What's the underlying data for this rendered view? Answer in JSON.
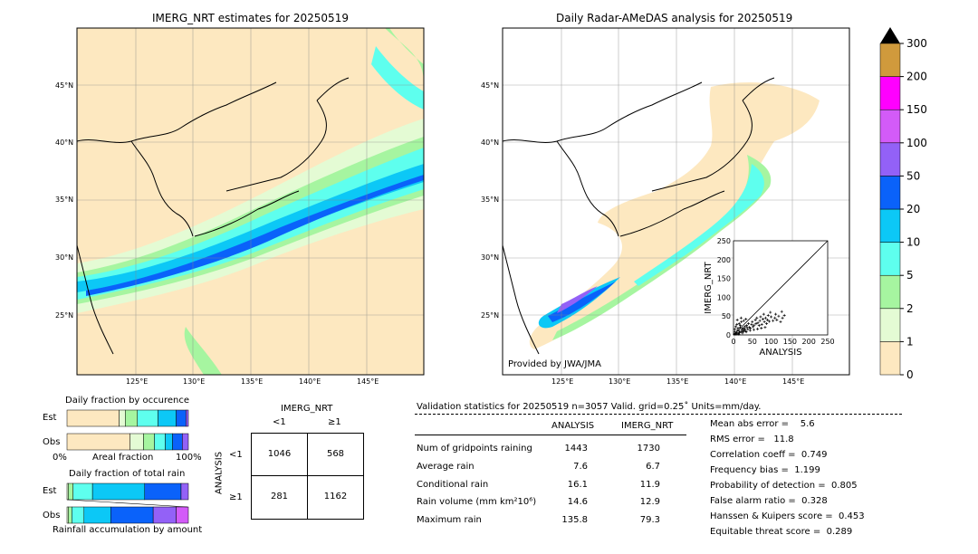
{
  "map_left": {
    "title": "IMERG_NRT estimates for 20250519",
    "lat_ticks": [
      "45°N",
      "40°N",
      "35°N",
      "30°N",
      "25°N"
    ],
    "lon_ticks": [
      "125°E",
      "130°E",
      "135°E",
      "140°E",
      "145°E"
    ]
  },
  "map_right": {
    "title": "Daily Radar-AMeDAS analysis for 20250519",
    "lat_ticks": [
      "45°N",
      "40°N",
      "35°N",
      "30°N",
      "25°N"
    ],
    "lon_ticks": [
      "125°E",
      "130°E",
      "135°E",
      "140°E",
      "145°E"
    ],
    "credit": "Provided by JWA/JMA"
  },
  "colorbar": {
    "levels": [
      "0",
      "1",
      "2",
      "5",
      "10",
      "20",
      "50",
      "100",
      "150",
      "200",
      "300"
    ],
    "colors": [
      "#fde8c0",
      "#e4fbd4",
      "#a6f5a0",
      "#5effee",
      "#0cc8f6",
      "#0a62fa",
      "#9361f7",
      "#d35bf8",
      "#ff00ff",
      "#d09a3c",
      "#000000"
    ]
  },
  "occurrence": {
    "title": "Daily fraction by occurence",
    "row_labels": [
      "Est",
      "Obs"
    ],
    "xlabel_left": "0%",
    "xlabel_center": "Areal fraction",
    "xlabel_right": "100%"
  },
  "total_rain": {
    "title": "Daily fraction of total rain",
    "row_labels": [
      "Est",
      "Obs"
    ],
    "xlabel": "Rainfall accumulation by amount"
  },
  "contingency": {
    "col_header": "IMERG_NRT",
    "col_labels": [
      "<1",
      "≥1"
    ],
    "row_header": "ANALYSIS",
    "row_labels": [
      "<1",
      "≥1"
    ],
    "cells": [
      [
        "1046",
        "568"
      ],
      [
        "281",
        "1162"
      ]
    ]
  },
  "validation": {
    "header": "Validation statistics for 20250519  n=3057 Valid. grid=0.25˚ Units=mm/day.",
    "col_analysis": "ANALYSIS",
    "col_imerg": "IMERG_NRT",
    "rows": [
      {
        "label": "Num of gridpoints raining",
        "analysis": "1443",
        "imerg": "1730"
      },
      {
        "label": "Average rain",
        "analysis": "7.6",
        "imerg": "6.7"
      },
      {
        "label": "Conditional rain",
        "analysis": "16.1",
        "imerg": "11.9"
      },
      {
        "label": "Rain volume (mm km²10⁶)",
        "analysis": "14.6",
        "imerg": "12.9"
      },
      {
        "label": "Maximum rain",
        "analysis": "135.8",
        "imerg": "79.3"
      }
    ],
    "scores": [
      "Mean abs error =    5.6",
      "RMS error =   11.8",
      "Correlation coeff =  0.749",
      "Frequency bias =  1.199",
      "Probability of detection =  0.805",
      "False alarm ratio =  0.328",
      "Hanssen & Kuipers score =  0.453",
      "Equitable threat score =  0.289"
    ]
  },
  "chart_data": [
    {
      "type": "scatter",
      "xlabel": "ANALYSIS",
      "ylabel": "IMERG_NRT",
      "xlim": [
        0,
        250
      ],
      "ylim": [
        0,
        250
      ],
      "ticks": [
        "0",
        "50",
        "100",
        "150",
        "200",
        "250"
      ],
      "points": [
        [
          5,
          3
        ],
        [
          8,
          6
        ],
        [
          10,
          12
        ],
        [
          12,
          4
        ],
        [
          15,
          10
        ],
        [
          18,
          20
        ],
        [
          20,
          8
        ],
        [
          22,
          15
        ],
        [
          25,
          18
        ],
        [
          28,
          12
        ],
        [
          30,
          22
        ],
        [
          32,
          10
        ],
        [
          35,
          25
        ],
        [
          38,
          15
        ],
        [
          40,
          30
        ],
        [
          42,
          20
        ],
        [
          45,
          18
        ],
        [
          48,
          28
        ],
        [
          50,
          35
        ],
        [
          52,
          22
        ],
        [
          55,
          26
        ],
        [
          58,
          40
        ],
        [
          60,
          30
        ],
        [
          62,
          45
        ],
        [
          65,
          32
        ],
        [
          68,
          25
        ],
        [
          70,
          38
        ],
        [
          72,
          48
        ],
        [
          75,
          28
        ],
        [
          78,
          42
        ],
        [
          80,
          55
        ],
        [
          82,
          35
        ],
        [
          85,
          45
        ],
        [
          88,
          30
        ],
        [
          90,
          40
        ],
        [
          92,
          52
        ],
        [
          95,
          36
        ],
        [
          98,
          60
        ],
        [
          100,
          48
        ],
        [
          105,
          38
        ],
        [
          110,
          45
        ],
        [
          112,
          55
        ],
        [
          115,
          40
        ],
        [
          120,
          50
        ],
        [
          125,
          35
        ],
        [
          128,
          62
        ],
        [
          130,
          45
        ],
        [
          135,
          52
        ],
        [
          3,
          15
        ],
        [
          6,
          22
        ],
        [
          9,
          28
        ],
        [
          12,
          18
        ],
        [
          15,
          30
        ],
        [
          18,
          25
        ],
        [
          21,
          35
        ],
        [
          24,
          12
        ],
        [
          27,
          38
        ],
        [
          30,
          16
        ],
        [
          33,
          42
        ],
        [
          36,
          20
        ],
        [
          14,
          2
        ],
        [
          24,
          5
        ],
        [
          34,
          8
        ],
        [
          44,
          12
        ],
        [
          54,
          14
        ],
        [
          64,
          16
        ],
        [
          74,
          18
        ],
        [
          84,
          20
        ],
        [
          10,
          40
        ],
        [
          20,
          45
        ],
        [
          2,
          2
        ],
        [
          4,
          8
        ],
        [
          7,
          2
        ],
        [
          16,
          6
        ],
        [
          26,
          9
        ]
      ]
    },
    {
      "type": "bar",
      "orientation": "horizontal-stacked",
      "title": "Daily fraction by occurence",
      "categories": [
        "Est",
        "Obs"
      ],
      "series": [
        {
          "color": "#fde8c0",
          "values": [
            0.43,
            0.52
          ]
        },
        {
          "color": "#e4fbd4",
          "values": [
            0.05,
            0.11
          ]
        },
        {
          "color": "#a6f5a0",
          "values": [
            0.1,
            0.09
          ]
        },
        {
          "color": "#5effee",
          "values": [
            0.17,
            0.09
          ]
        },
        {
          "color": "#0cc8f6",
          "values": [
            0.15,
            0.06
          ]
        },
        {
          "color": "#0a62fa",
          "values": [
            0.08,
            0.08
          ]
        },
        {
          "color": "#9361f7",
          "values": [
            0.02,
            0.05
          ]
        }
      ]
    },
    {
      "type": "bar",
      "orientation": "horizontal-stacked",
      "title": "Daily fraction of total rain",
      "categories": [
        "Est",
        "Obs"
      ],
      "series": [
        {
          "color": "#e4fbd4",
          "values": [
            0.01,
            0.01
          ]
        },
        {
          "color": "#a6f5a0",
          "values": [
            0.04,
            0.03
          ]
        },
        {
          "color": "#5effee",
          "values": [
            0.16,
            0.1
          ]
        },
        {
          "color": "#0cc8f6",
          "values": [
            0.43,
            0.22
          ]
        },
        {
          "color": "#0a62fa",
          "values": [
            0.3,
            0.35
          ]
        },
        {
          "color": "#9361f7",
          "values": [
            0.06,
            0.19
          ]
        },
        {
          "color": "#d35bf8",
          "values": [
            0.0,
            0.1
          ]
        }
      ]
    }
  ]
}
